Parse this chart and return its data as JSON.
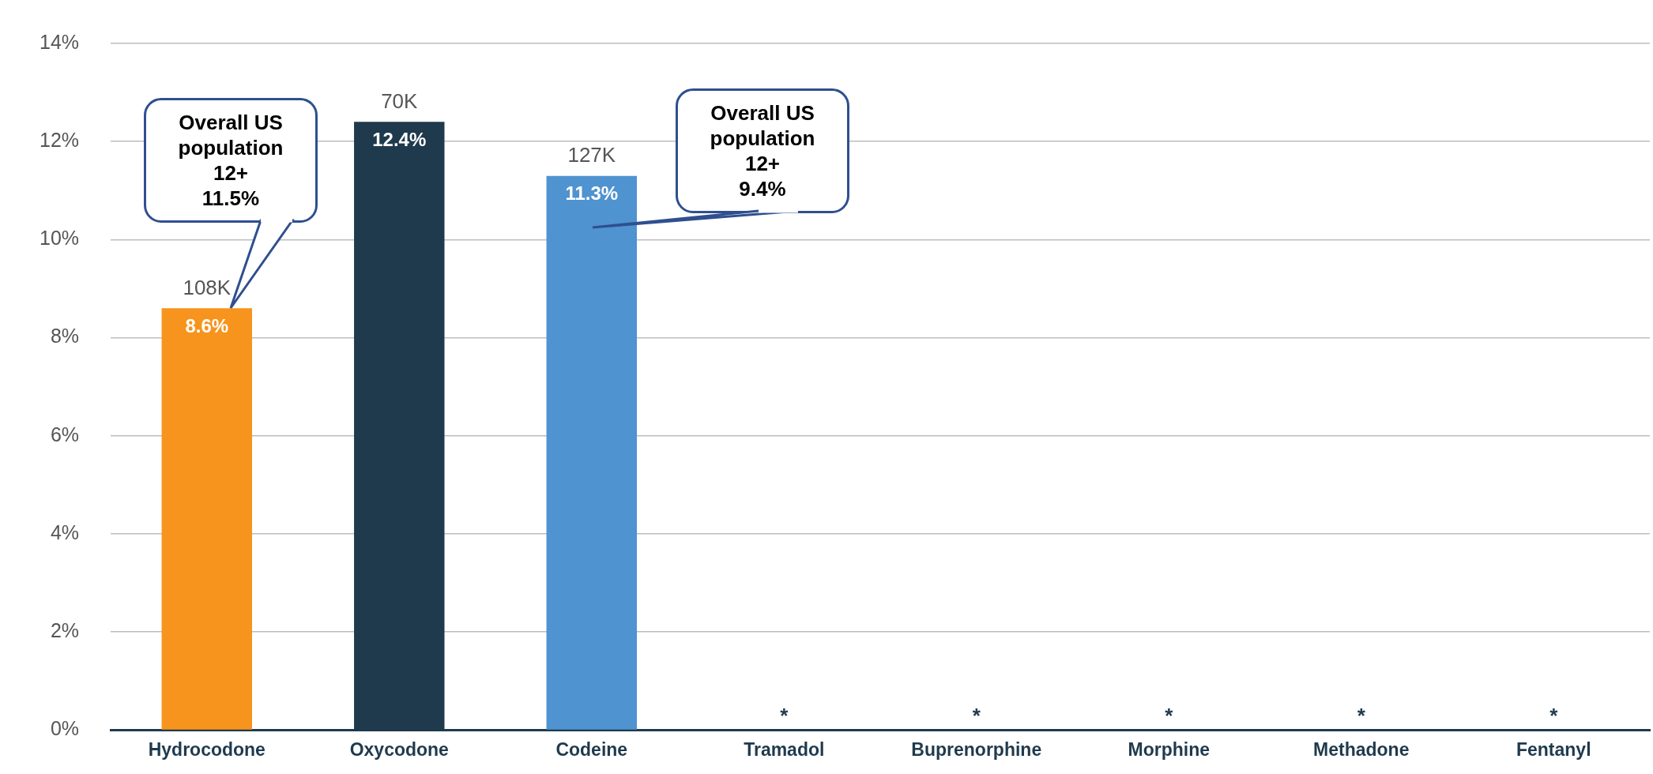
{
  "chart_data": {
    "type": "bar",
    "categories": [
      "Hydrocodone",
      "Oxycodone",
      "Codeine",
      "Tramadol",
      "Buprenorphine",
      "Morphine",
      "Methadone",
      "Fentanyl"
    ],
    "values": [
      8.6,
      12.4,
      11.3,
      null,
      null,
      null,
      null,
      null
    ],
    "colors": [
      "#f7941d",
      "#1f3a4d",
      "#4f93d0",
      "#1f3a4d",
      "#1f3a4d",
      "#1f3a4d",
      "#1f3a4d",
      "#1f3a4d"
    ],
    "value_labels": [
      "8.6%",
      "12.4%",
      "11.3%",
      "*",
      "*",
      "*",
      "*",
      "*"
    ],
    "ylim": [
      0,
      14
    ],
    "yticks": [
      {
        "value": 0,
        "label": "0%"
      },
      {
        "value": 2,
        "label": "2%"
      },
      {
        "value": 4,
        "label": "4%"
      },
      {
        "value": 6,
        "label": "6%"
      },
      {
        "value": 8,
        "label": "8%"
      },
      {
        "value": 10,
        "label": "10%"
      },
      {
        "value": 12,
        "label": "12%"
      },
      {
        "value": 14,
        "label": "14%"
      }
    ],
    "grid": "y",
    "legend": false,
    "annotations": [
      {
        "text": "108K",
        "x": "Hydrocodone",
        "y": 8.6
      },
      {
        "text": "70K",
        "x": "Oxycodone",
        "y": 12.4
      },
      {
        "text": "127K",
        "x": "Codeine",
        "y": 11.3
      },
      "Overall US\npopulation\n12+\n11.5%",
      "Overall US\npopulation\n12+\n9.4%"
    ]
  }
}
